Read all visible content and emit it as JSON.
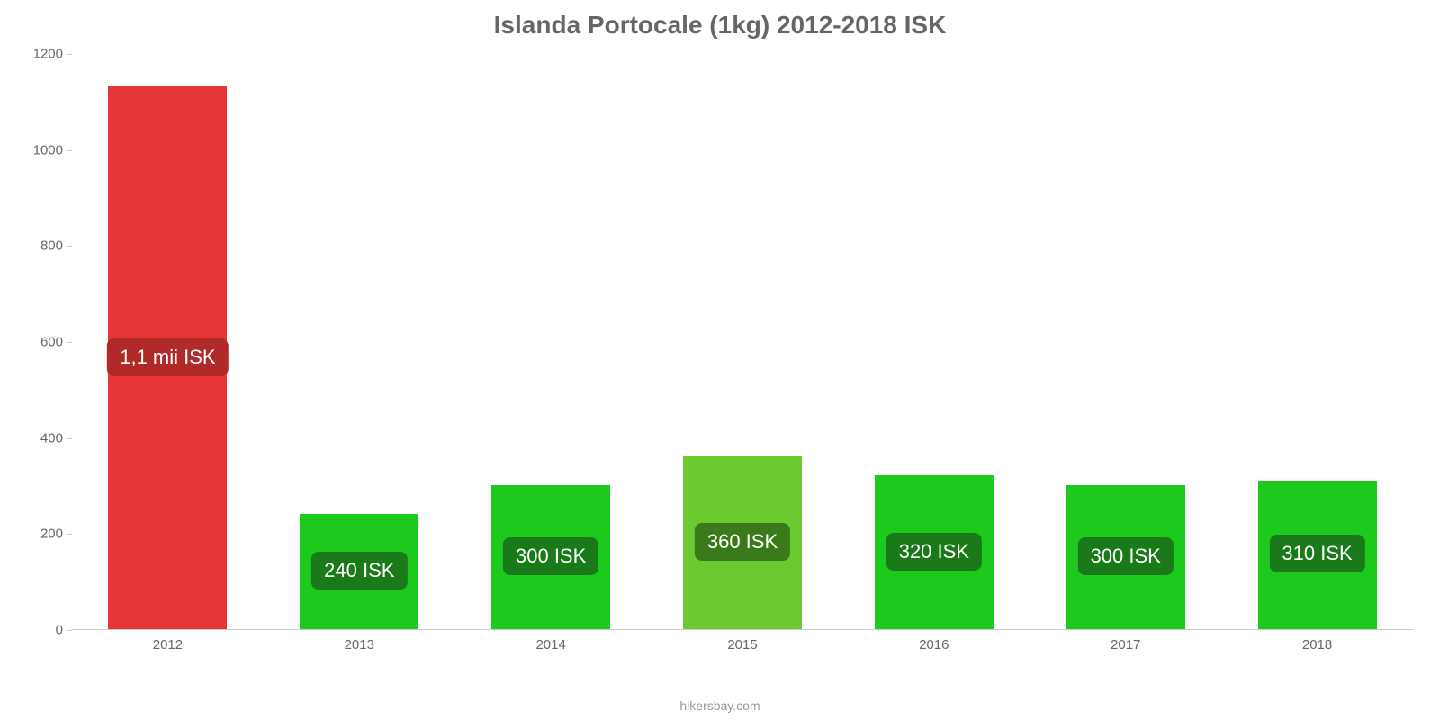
{
  "chart": {
    "type": "bar",
    "title": "Islanda Portocale (1kg) 2012-2018 ISK",
    "title_color": "#666666",
    "title_fontsize": 28,
    "background_color": "#ffffff",
    "axis_color": "#cccccc",
    "tick_label_color": "#666666",
    "tick_label_fontsize": 15,
    "ylim": [
      0,
      1200
    ],
    "ytick_step": 200,
    "yticks": [
      0,
      200,
      400,
      600,
      800,
      1000,
      1200
    ],
    "categories": [
      "2012",
      "2013",
      "2014",
      "2015",
      "2016",
      "2017",
      "2018"
    ],
    "values": [
      1130,
      240,
      300,
      360,
      320,
      300,
      310
    ],
    "bar_colors": [
      "#e53535",
      "#1ec91e",
      "#1ec91e",
      "#6cc930",
      "#1ec91e",
      "#1ec91e",
      "#1ec91e"
    ],
    "bar_labels": [
      "1,1 mii ISK",
      "240 ISK",
      "300 ISK",
      "360 ISK",
      "320 ISK",
      "300 ISK",
      "310 ISK"
    ],
    "bar_label_bg": [
      "#b12a2a",
      "#1a7a1a",
      "#1a7a1a",
      "#3a7a1a",
      "#1a7a1a",
      "#1a7a1a",
      "#1a7a1a"
    ],
    "bar_label_color": "#ffffff",
    "bar_label_fontsize": 22,
    "bar_width_ratio": 0.62,
    "attribution": "hikersbay.com",
    "attribution_color": "#999999"
  }
}
